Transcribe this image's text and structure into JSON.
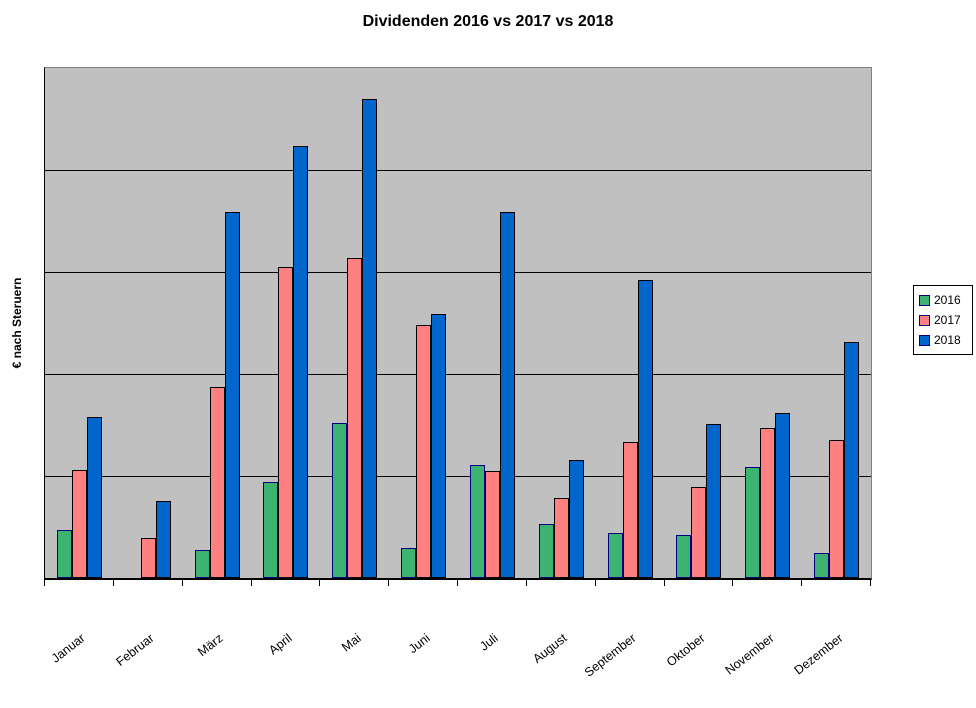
{
  "chart_data": {
    "type": "bar",
    "title": "Dividenden 2016 vs 2017 vs 2018",
    "ylabel": "€ nach Steruern",
    "xlabel": "",
    "categories": [
      "Januar",
      "Februar",
      "März",
      "April",
      "Mai",
      "Juni",
      "Juli",
      "August",
      "September",
      "Oktober",
      "November",
      "Dezember"
    ],
    "series": [
      {
        "name": "2016",
        "color": "#3CB371",
        "border": "#000080",
        "values": [
          9.4,
          0,
          5.5,
          18.8,
          30.4,
          5.9,
          22.2,
          10.6,
          8.8,
          8.4,
          21.8,
          4.9
        ]
      },
      {
        "name": "2017",
        "color": "#FF8080",
        "border": "#000000",
        "values": [
          21.2,
          7.8,
          37.5,
          61.0,
          62.7,
          49.6,
          21.0,
          15.7,
          26.7,
          17.8,
          29.4,
          27.1
        ]
      },
      {
        "name": "2018",
        "color": "#0066CC",
        "border": "#000000",
        "values": [
          31.6,
          15.1,
          71.8,
          84.7,
          93.9,
          51.8,
          71.8,
          23.1,
          58.4,
          30.2,
          32.4,
          46.3
        ]
      }
    ],
    "value_axis": {
      "tick_labels_visible": false,
      "max": 100,
      "gridline_interval": 20,
      "units": "relative scale (axis unlabeled in source), 100 = plot top"
    },
    "legend_position": "right",
    "grid": "horizontal black gridlines on gray plot area"
  },
  "colors": {
    "plot_background": "#C0C0C0",
    "plot_border": "#808080",
    "gridline": "#000000",
    "axis": "#000000",
    "chart_background": "#FFFFFF"
  }
}
